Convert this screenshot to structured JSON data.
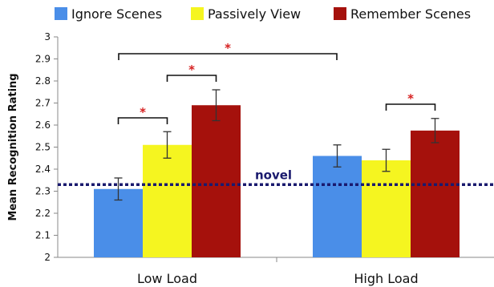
{
  "chart_data": {
    "type": "bar",
    "title": "",
    "xlabel": "",
    "ylabel": "Mean Recognition Rating",
    "ylim": [
      2,
      3
    ],
    "yticks": [
      "2",
      "2.1",
      "2.2",
      "2.3",
      "2.4",
      "2.5",
      "2.6",
      "2.7",
      "2.8",
      "2.9",
      "3"
    ],
    "categories": [
      "Low Load",
      "High Load"
    ],
    "legend_position": "top",
    "grid": false,
    "series": [
      {
        "name": "Ignore Scenes",
        "color": "#4a8ee8",
        "values": [
          2.31,
          2.46
        ],
        "errors": [
          0.05,
          0.05
        ]
      },
      {
        "name": "Passively View",
        "color": "#f5f520",
        "values": [
          2.51,
          2.44
        ],
        "errors": [
          0.06,
          0.05
        ]
      },
      {
        "name": "Remember Scenes",
        "color": "#a5110c",
        "values": [
          2.69,
          2.575
        ],
        "errors": [
          0.07,
          0.055
        ]
      }
    ],
    "reference_line": {
      "label": "novel",
      "value": 2.33,
      "color": "#1a1a6e"
    },
    "significance": [
      {
        "category": 0,
        "from_series": 0,
        "to_series": 1,
        "label": "*"
      },
      {
        "category": 0,
        "from_series": 1,
        "to_series": 2,
        "label": "*"
      },
      {
        "category": 1,
        "from_series": 1,
        "to_series": 2,
        "label": "*"
      },
      {
        "category_pair": [
          0,
          1
        ],
        "from_series": 0,
        "to_series": 0,
        "label": "*"
      }
    ],
    "significance_color": "#d62020"
  }
}
